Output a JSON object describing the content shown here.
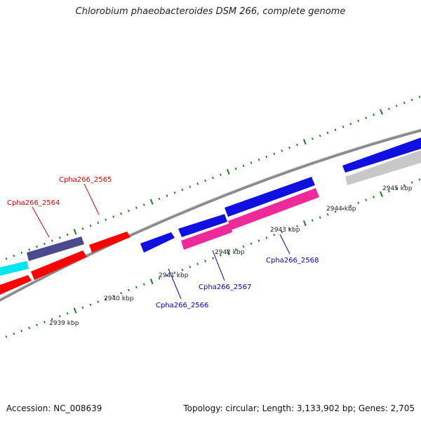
{
  "title": "Chlorobium phaeobacteroides DSM 266, complete genome",
  "footer": {
    "accession": "Accession: NC_008639",
    "summary": "Topology: circular; Length: 3,133,902 bp; Genes: 2,705"
  },
  "colors": {
    "backbone": "#8a8a8a",
    "tick": "#1e7a1e",
    "red": "#ff0000",
    "blue": "#1010e0",
    "magenta": "#ee2a9a",
    "navy": "#4a4a8c",
    "cyan": "#00e5f0",
    "gray": "#c8c8c8",
    "label_red": "#dd0000",
    "label_blue": "#0000cc"
  },
  "scale_labels": [
    "2939 kbp",
    "2940 kbp",
    "2941 kbp",
    "2942 kbp",
    "2943 kbp",
    "2944 kbp",
    "2945 kbp"
  ],
  "gene_labels": [
    {
      "text": "Cpha266_2564",
      "color": "label_red"
    },
    {
      "text": "Cpha266_2565",
      "color": "label_red"
    },
    {
      "text": "Cpha266_2566",
      "color": "label_blue"
    },
    {
      "text": "Cpha266_2567",
      "color": "label_blue"
    },
    {
      "text": "Cpha266_2568",
      "color": "label_blue"
    }
  ]
}
